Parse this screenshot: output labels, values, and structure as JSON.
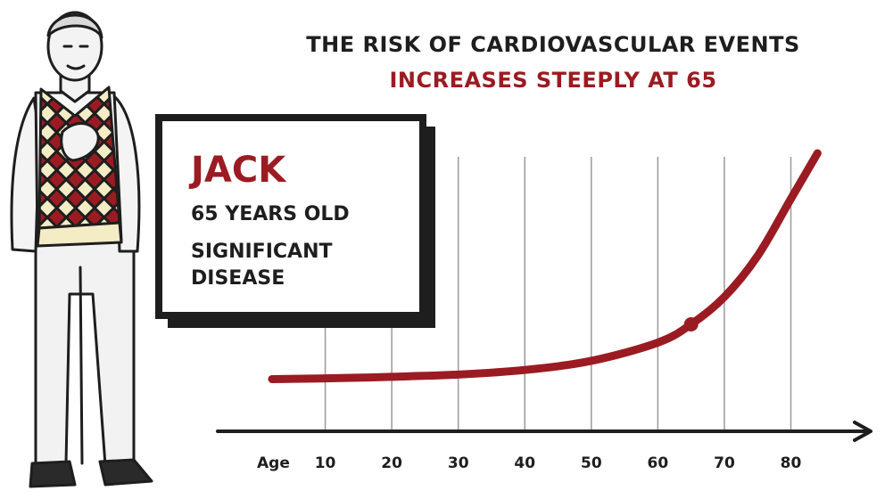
{
  "title": "THE RISK OF CARDIOVASCULAR EVENTS",
  "subtitle": "INCREASES STEEPLY AT 65",
  "card": {
    "name": "JACK",
    "age_text": "65 YEARS OLD",
    "condition": "SIGNIFICANT DISEASE"
  },
  "colors": {
    "accent": "#9b1b22",
    "ink": "#1e1e1e",
    "grid": "#9a9a9a",
    "vest_light": "#f3ecc5",
    "vest_dark": "#9b1b22"
  },
  "chart_data": {
    "type": "line",
    "title": "THE RISK OF CARDIOVASCULAR EVENTS",
    "subtitle": "INCREASES STEEPLY AT 65",
    "xlabel": "Age",
    "ylabel": "",
    "x_ticks": [
      10,
      20,
      30,
      40,
      50,
      60,
      70,
      80
    ],
    "xlim": [
      0,
      92
    ],
    "grid": "vertical",
    "series": [
      {
        "x": [
          2,
          10,
          20,
          30,
          40,
          50,
          60,
          65,
          70,
          75,
          80,
          84
        ],
        "y": [
          1,
          1.3,
          2,
          3,
          5,
          9,
          17,
          25,
          37,
          55,
          80,
          100
        ]
      }
    ],
    "highlight_point": {
      "x": 65,
      "y": 25
    }
  }
}
